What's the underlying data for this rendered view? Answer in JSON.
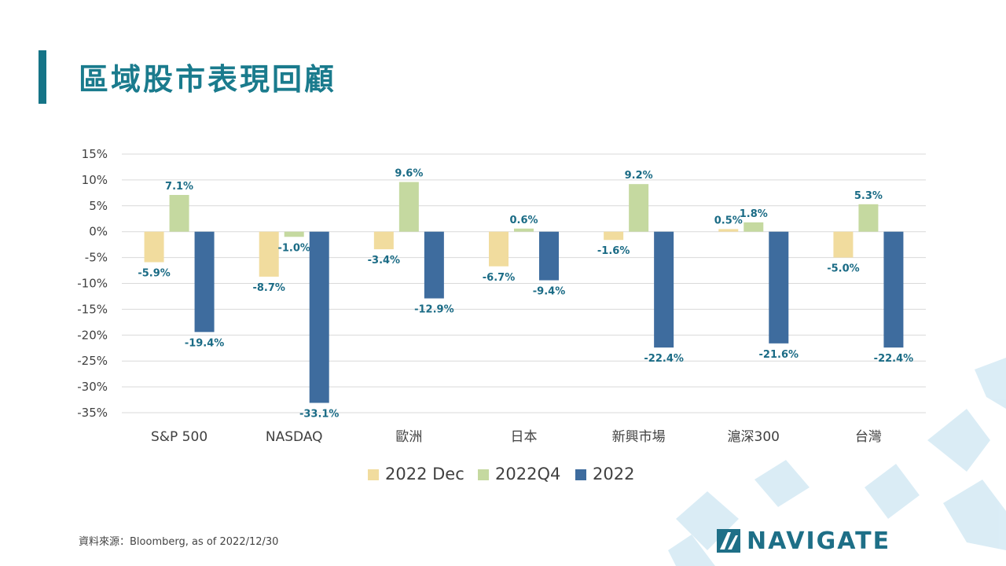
{
  "header": {
    "title": "區域股市表現回顧"
  },
  "footer": {
    "source": "資料來源：Bloomberg, as of 2022/12/30",
    "logo_text": "NAVIGATE"
  },
  "colors": {
    "accent": "#157487",
    "series": [
      "#f1dc9e",
      "#c5d9a0",
      "#3e6c9e"
    ],
    "label": "#1a6b85",
    "grid": "#d9d9d9"
  },
  "chart_data": {
    "type": "bar",
    "title": "",
    "xlabel": "",
    "ylabel": "",
    "categories": [
      "S&P 500",
      "NASDAQ",
      "歐洲",
      "日本",
      "新興市場",
      "滬深300",
      "台灣"
    ],
    "series": [
      {
        "name": "2022 Dec",
        "values": [
          -5.9,
          -8.7,
          -3.4,
          -6.7,
          -1.6,
          0.5,
          -5.0
        ]
      },
      {
        "name": "2022Q4",
        "values": [
          7.1,
          -1.0,
          9.6,
          0.6,
          9.2,
          1.8,
          5.3
        ]
      },
      {
        "name": "2022",
        "values": [
          -19.4,
          -33.1,
          -12.9,
          -9.4,
          -22.4,
          -21.6,
          -22.4
        ]
      }
    ],
    "ylim": [
      -35,
      15
    ],
    "yticks": [
      15,
      10,
      5,
      0,
      -5,
      -10,
      -15,
      -20,
      -25,
      -30,
      -35
    ],
    "ytick_labels": [
      "15%",
      "10%",
      "5%",
      "0%",
      "-5%",
      "-10%",
      "-15%",
      "-20%",
      "-25%",
      "-30%",
      "-35%"
    ],
    "data_labels": [
      [
        "-5.9%",
        "-8.7%",
        "-3.4%",
        "-6.7%",
        "-1.6%",
        "0.5%",
        "-5.0%"
      ],
      [
        "7.1%",
        "-1.0%",
        "9.6%",
        "0.6%",
        "9.2%",
        "1.8%",
        "5.3%"
      ],
      [
        "-19.4%",
        "-33.1%",
        "-12.9%",
        "-9.4%",
        "-22.4%",
        "-21.6%",
        "-22.4%"
      ]
    ],
    "grid": true,
    "legend_position": "bottom"
  }
}
